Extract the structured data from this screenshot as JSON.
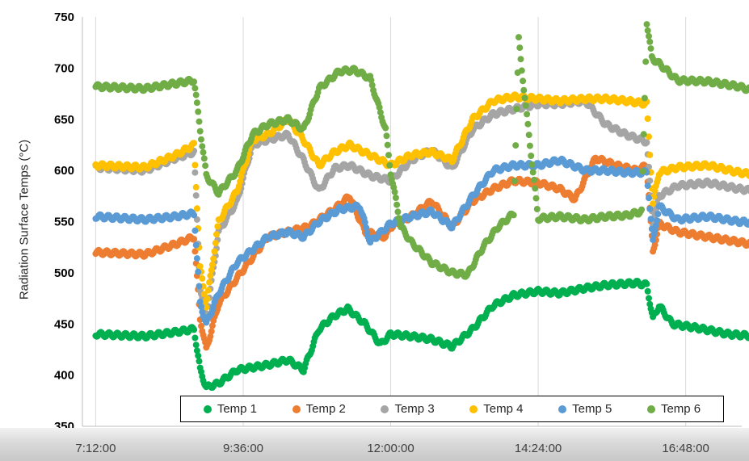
{
  "chart_data": {
    "type": "scatter",
    "title": "",
    "xlabel": "",
    "ylabel": "Radiation Surface Temps (°C)",
    "ylim": [
      350,
      750
    ],
    "yticks": [
      "350",
      "400",
      "450",
      "500",
      "550",
      "600",
      "650",
      "700",
      "750"
    ],
    "xticks": [
      "7:12:00",
      "9:36:00",
      "12:00:00",
      "14:24:00",
      "16:48:00"
    ],
    "grid": "vertical",
    "legend_position": "bottom-right",
    "series": [
      {
        "name": "Temp 1",
        "color": "#00B050",
        "points": [
          [
            "7:12:00",
            440
          ],
          [
            "8:00:00",
            438
          ],
          [
            "8:30:00",
            442
          ],
          [
            "8:48:00",
            445
          ],
          [
            "8:54:00",
            405
          ],
          [
            "9:00:00",
            388
          ],
          [
            "9:12:00",
            392
          ],
          [
            "9:30:00",
            405
          ],
          [
            "10:00:00",
            410
          ],
          [
            "10:20:00",
            415
          ],
          [
            "10:35:00",
            405
          ],
          [
            "10:50:00",
            445
          ],
          [
            "11:05:00",
            458
          ],
          [
            "11:18:00",
            465
          ],
          [
            "11:35:00",
            450
          ],
          [
            "11:50:00",
            430
          ],
          [
            "12:00:00",
            440
          ],
          [
            "12:20:00",
            438
          ],
          [
            "12:40:00",
            435
          ],
          [
            "13:00:00",
            428
          ],
          [
            "13:20:00",
            445
          ],
          [
            "13:40:00",
            468
          ],
          [
            "14:00:00",
            478
          ],
          [
            "14:24:00",
            482
          ],
          [
            "14:45:00",
            480
          ],
          [
            "15:10:00",
            485
          ],
          [
            "15:30:00",
            488
          ],
          [
            "16:00:00",
            490
          ],
          [
            "16:10:00",
            488
          ],
          [
            "16:16:00",
            455
          ],
          [
            "16:22:00",
            468
          ],
          [
            "16:35:00",
            450
          ],
          [
            "17:00:00",
            446
          ],
          [
            "17:30:00",
            440
          ],
          [
            "18:10:00",
            437
          ]
        ]
      },
      {
        "name": "Temp 2",
        "color": "#ED7D31",
        "points": [
          [
            "7:12:00",
            520
          ],
          [
            "8:00:00",
            518
          ],
          [
            "8:30:00",
            528
          ],
          [
            "8:48:00",
            535
          ],
          [
            "8:54:00",
            455
          ],
          [
            "9:00:00",
            425
          ],
          [
            "9:12:00",
            470
          ],
          [
            "9:30:00",
            495
          ],
          [
            "10:00:00",
            535
          ],
          [
            "10:20:00",
            540
          ],
          [
            "10:40:00",
            545
          ],
          [
            "11:05:00",
            562
          ],
          [
            "11:20:00",
            575
          ],
          [
            "11:35:00",
            540
          ],
          [
            "11:55:00",
            535
          ],
          [
            "12:00:00",
            545
          ],
          [
            "12:20:00",
            555
          ],
          [
            "12:40:00",
            570
          ],
          [
            "13:00:00",
            545
          ],
          [
            "13:20:00",
            570
          ],
          [
            "13:40:00",
            582
          ],
          [
            "14:00:00",
            590
          ],
          [
            "14:24:00",
            588
          ],
          [
            "14:45:00",
            582
          ],
          [
            "15:00:00",
            572
          ],
          [
            "15:20:00",
            612
          ],
          [
            "15:40:00",
            605
          ],
          [
            "16:00:00",
            600
          ],
          [
            "16:10:00",
            605
          ],
          [
            "16:16:00",
            520
          ],
          [
            "16:22:00",
            548
          ],
          [
            "16:40:00",
            540
          ],
          [
            "17:10:00",
            535
          ],
          [
            "17:40:00",
            530
          ],
          [
            "18:10:00",
            525
          ]
        ]
      },
      {
        "name": "Temp 3",
        "color": "#A5A5A5",
        "points": [
          [
            "7:12:00",
            603
          ],
          [
            "8:00:00",
            600
          ],
          [
            "8:30:00",
            612
          ],
          [
            "8:48:00",
            618
          ],
          [
            "8:54:00",
            485
          ],
          [
            "9:00:00",
            455
          ],
          [
            "9:12:00",
            540
          ],
          [
            "9:30:00",
            570
          ],
          [
            "9:45:00",
            625
          ],
          [
            "10:00:00",
            630
          ],
          [
            "10:20:00",
            635
          ],
          [
            "10:35:00",
            610
          ],
          [
            "10:50:00",
            580
          ],
          [
            "11:05:00",
            602
          ],
          [
            "11:20:00",
            605
          ],
          [
            "11:40:00",
            595
          ],
          [
            "12:00:00",
            590
          ],
          [
            "12:20:00",
            610
          ],
          [
            "12:40:00",
            620
          ],
          [
            "13:00:00",
            602
          ],
          [
            "13:20:00",
            640
          ],
          [
            "13:40:00",
            655
          ],
          [
            "14:00:00",
            660
          ],
          [
            "14:24:00",
            665
          ],
          [
            "14:45:00",
            665
          ],
          [
            "15:10:00",
            668
          ],
          [
            "15:30:00",
            645
          ],
          [
            "15:50:00",
            635
          ],
          [
            "16:10:00",
            628
          ],
          [
            "16:16:00",
            548
          ],
          [
            "16:22:00",
            575
          ],
          [
            "16:40:00",
            585
          ],
          [
            "17:10:00",
            588
          ],
          [
            "17:40:00",
            582
          ],
          [
            "18:10:00",
            578
          ]
        ]
      },
      {
        "name": "Temp 4",
        "color": "#FFC000",
        "points": [
          [
            "7:12:00",
            605
          ],
          [
            "8:00:00",
            603
          ],
          [
            "8:30:00",
            615
          ],
          [
            "8:48:00",
            625
          ],
          [
            "8:54:00",
            505
          ],
          [
            "9:00:00",
            468
          ],
          [
            "9:12:00",
            550
          ],
          [
            "9:30:00",
            580
          ],
          [
            "9:45:00",
            630
          ],
          [
            "10:00:00",
            635
          ],
          [
            "10:20:00",
            650
          ],
          [
            "10:35:00",
            630
          ],
          [
            "10:50:00",
            605
          ],
          [
            "11:05:00",
            618
          ],
          [
            "11:20:00",
            625
          ],
          [
            "11:40:00",
            615
          ],
          [
            "12:00:00",
            605
          ],
          [
            "12:20:00",
            615
          ],
          [
            "12:40:00",
            618
          ],
          [
            "13:00:00",
            610
          ],
          [
            "13:20:00",
            650
          ],
          [
            "13:40:00",
            668
          ],
          [
            "14:00:00",
            672
          ],
          [
            "14:24:00",
            670
          ],
          [
            "14:45:00",
            668
          ],
          [
            "15:10:00",
            670
          ],
          [
            "15:30:00",
            670
          ],
          [
            "15:50:00",
            668
          ],
          [
            "16:10:00",
            665
          ],
          [
            "16:16:00",
            568
          ],
          [
            "16:22:00",
            598
          ],
          [
            "16:40:00",
            603
          ],
          [
            "17:10:00",
            605
          ],
          [
            "17:40:00",
            598
          ],
          [
            "18:10:00",
            594
          ]
        ]
      },
      {
        "name": "Temp 5",
        "color": "#5B9BD5",
        "points": [
          [
            "7:12:00",
            555
          ],
          [
            "8:00:00",
            552
          ],
          [
            "8:30:00",
            555
          ],
          [
            "8:48:00",
            558
          ],
          [
            "8:54:00",
            470
          ],
          [
            "9:00:00",
            450
          ],
          [
            "9:12:00",
            480
          ],
          [
            "9:30:00",
            510
          ],
          [
            "10:00:00",
            535
          ],
          [
            "10:20:00",
            540
          ],
          [
            "10:35:00",
            535
          ],
          [
            "10:50:00",
            550
          ],
          [
            "11:10:00",
            562
          ],
          [
            "11:30:00",
            565
          ],
          [
            "11:40:00",
            530
          ],
          [
            "12:00:00",
            548
          ],
          [
            "12:20:00",
            555
          ],
          [
            "12:40:00",
            560
          ],
          [
            "13:00:00",
            545
          ],
          [
            "13:20:00",
            575
          ],
          [
            "13:40:00",
            600
          ],
          [
            "14:00:00",
            605
          ],
          [
            "14:24:00",
            605
          ],
          [
            "14:45:00",
            610
          ],
          [
            "15:10:00",
            600
          ],
          [
            "15:30:00",
            600
          ],
          [
            "15:50:00",
            598
          ],
          [
            "16:10:00",
            598
          ],
          [
            "16:16:00",
            530
          ],
          [
            "16:22:00",
            565
          ],
          [
            "16:40:00",
            552
          ],
          [
            "17:10:00",
            555
          ],
          [
            "17:40:00",
            550
          ],
          [
            "18:10:00",
            548
          ]
        ]
      },
      {
        "name": "Temp 6",
        "color": "#70AD47",
        "points": [
          [
            "7:12:00",
            682
          ],
          [
            "8:00:00",
            680
          ],
          [
            "8:30:00",
            685
          ],
          [
            "8:48:00",
            688
          ],
          [
            "8:54:00",
            640
          ],
          [
            "9:00:00",
            595
          ],
          [
            "9:12:00",
            578
          ],
          [
            "9:30:00",
            600
          ],
          [
            "9:45:00",
            635
          ],
          [
            "10:00:00",
            645
          ],
          [
            "10:20:00",
            650
          ],
          [
            "10:35:00",
            640
          ],
          [
            "10:50:00",
            680
          ],
          [
            "11:10:00",
            697
          ],
          [
            "11:25:00",
            698
          ],
          [
            "11:40:00",
            690
          ],
          [
            "11:55:00",
            640
          ],
          [
            "12:00:00",
            598
          ],
          [
            "12:10:00",
            545
          ],
          [
            "12:20:00",
            530
          ],
          [
            "12:40:00",
            510
          ],
          [
            "13:00:00",
            500
          ],
          [
            "13:15:00",
            498
          ],
          [
            "13:30:00",
            525
          ],
          [
            "13:45:00",
            545
          ],
          [
            "14:00:00",
            558
          ],
          [
            "14:05:00",
            728
          ],
          [
            "14:10:00",
            680
          ],
          [
            "14:24:00",
            553
          ],
          [
            "14:45:00",
            555
          ],
          [
            "15:10:00",
            552
          ],
          [
            "15:30:00",
            555
          ],
          [
            "15:50:00",
            556
          ],
          [
            "16:05:00",
            560
          ],
          [
            "16:10:00",
            745
          ],
          [
            "16:15:00",
            710
          ],
          [
            "16:25:00",
            702
          ],
          [
            "16:40:00",
            688
          ],
          [
            "17:10:00",
            687
          ],
          [
            "17:40:00",
            682
          ],
          [
            "18:10:00",
            673
          ]
        ]
      }
    ]
  }
}
